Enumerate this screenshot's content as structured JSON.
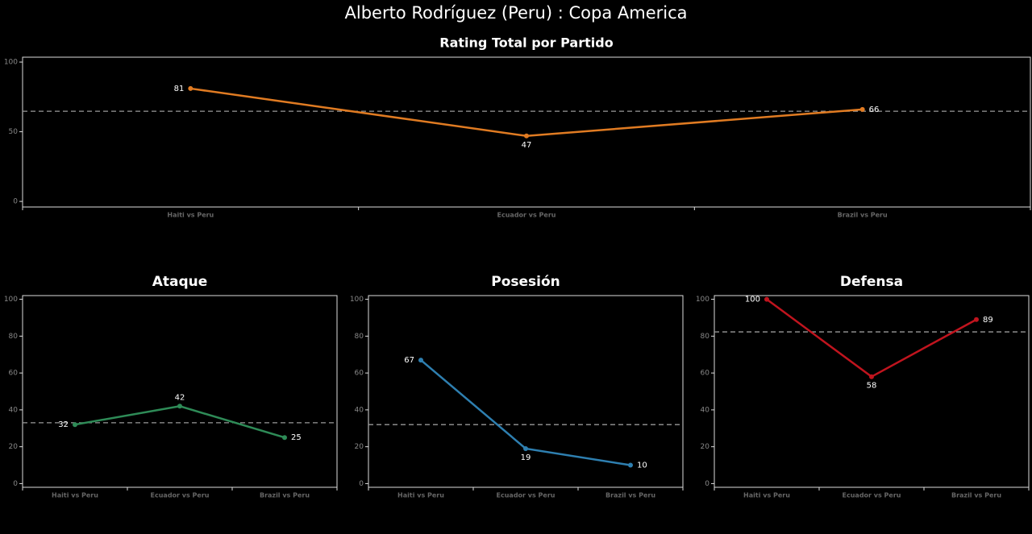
{
  "title": "Alberto Rodríguez (Peru) :  Copa  America",
  "chart_data": [
    {
      "type": "line",
      "title": "Rating Total por Partido",
      "categories": [
        "Haiti vs Peru",
        "Ecuador vs Peru",
        "Brazil vs Peru"
      ],
      "values": [
        81,
        47,
        66
      ],
      "color": "#e07b22",
      "reference_line": 64.7,
      "ylim": [
        -4,
        103.5
      ],
      "yticks": [
        0,
        50,
        100
      ]
    },
    {
      "type": "line",
      "title": "Ataque",
      "categories": [
        "Haiti vs Peru",
        "Ecuador vs Peru",
        "Brazil vs Peru"
      ],
      "values": [
        32,
        42,
        25
      ],
      "color": "#2e8b57",
      "reference_line": 33,
      "ylim": [
        -2,
        102
      ],
      "yticks": [
        0,
        20,
        40,
        60,
        80,
        100
      ]
    },
    {
      "type": "line",
      "title": "Posesión",
      "categories": [
        "Haiti vs Peru",
        "Ecuador vs Peru",
        "Brazil vs Peru"
      ],
      "values": [
        67,
        19,
        10
      ],
      "color": "#2e7fb0",
      "reference_line": 32,
      "ylim": [
        -2,
        102
      ],
      "yticks": [
        0,
        20,
        40,
        60,
        80,
        100
      ]
    },
    {
      "type": "line",
      "title": "Defensa",
      "categories": [
        "Haiti vs Peru",
        "Ecuador vs Peru",
        "Brazil vs Peru"
      ],
      "values": [
        100,
        58,
        89
      ],
      "color": "#c0141e",
      "reference_line": 82.3,
      "ylim": [
        -2,
        102
      ],
      "yticks": [
        0,
        20,
        40,
        60,
        80,
        100
      ]
    }
  ]
}
